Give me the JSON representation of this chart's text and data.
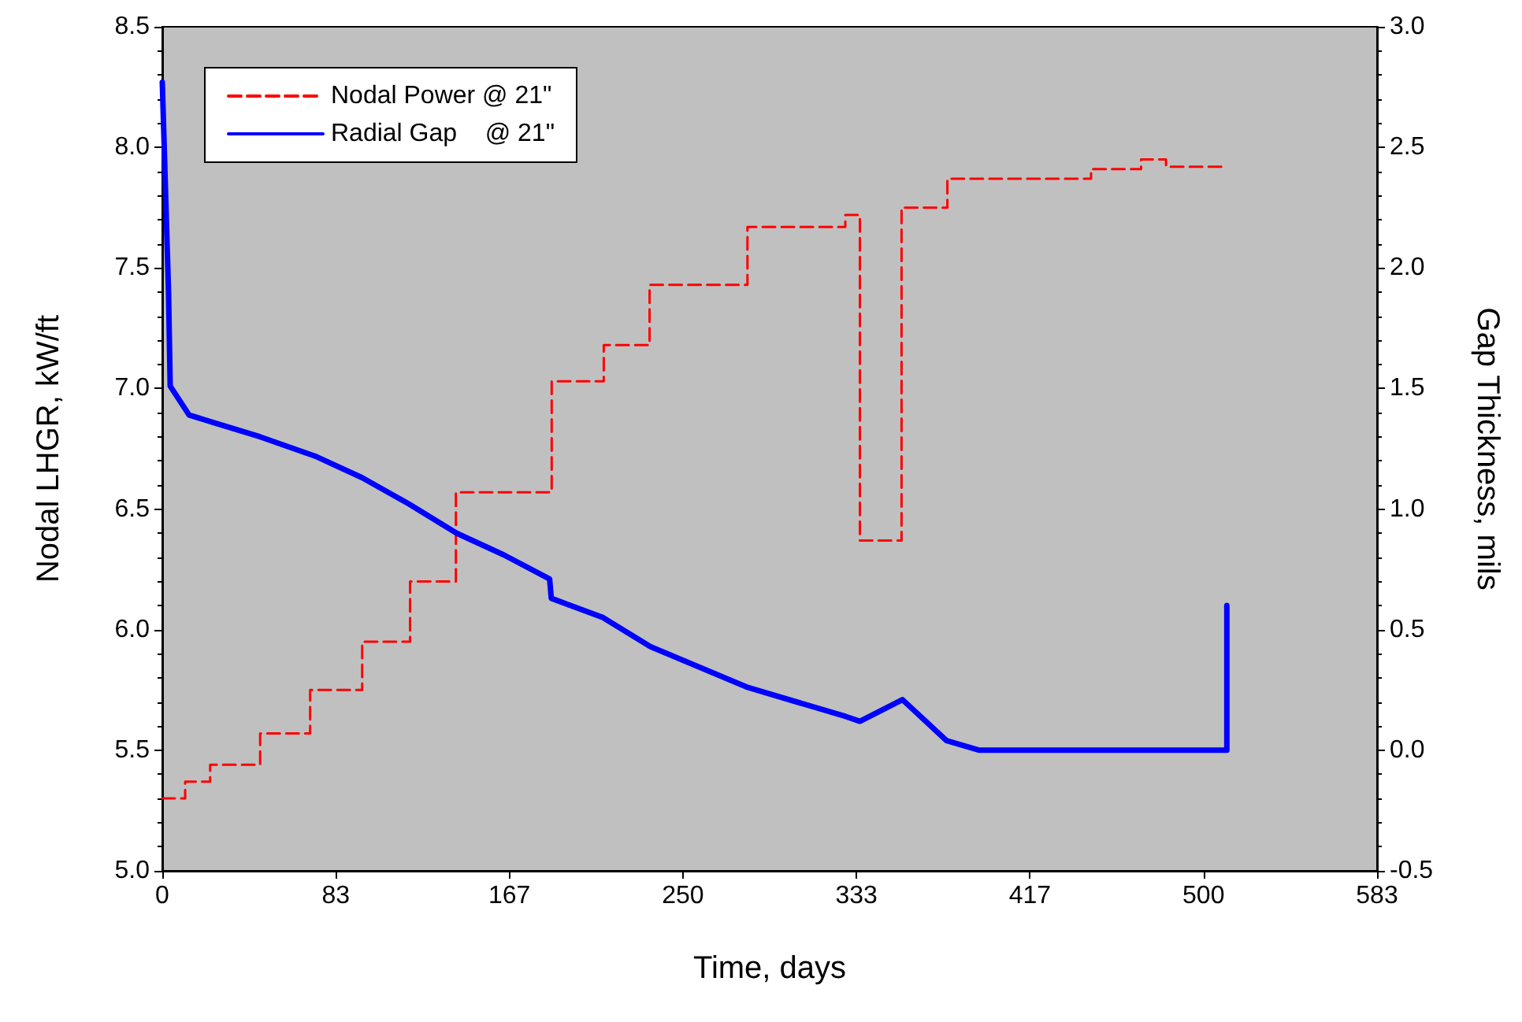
{
  "chart_data": {
    "type": "step",
    "xlabel": "Time, days",
    "ylabel": "Nodal LHGR, kW/ft",
    "y2label": "Gap Thickness, mils",
    "xlim": [
      0,
      583.33
    ],
    "xticks": [
      {
        "value": 0,
        "label": "0"
      },
      {
        "value": 83.33,
        "label": "83"
      },
      {
        "value": 166.67,
        "label": "167"
      },
      {
        "value": 250,
        "label": "250"
      },
      {
        "value": 333.33,
        "label": "333"
      },
      {
        "value": 416.67,
        "label": "417"
      },
      {
        "value": 500,
        "label": "500"
      },
      {
        "value": 583.33,
        "label": "583"
      }
    ],
    "ylim": [
      5,
      8.5
    ],
    "yticks": [
      {
        "value": 5,
        "label": "5.0"
      },
      5.5,
      {
        "value": 6,
        "label": "6.0"
      },
      6.5,
      {
        "value": 7,
        "label": "7.0"
      },
      7.5,
      {
        "value": 8,
        "label": "8.0"
      },
      8.5
    ],
    "y2lim": [
      -0.5,
      3
    ],
    "y2ticks": [
      -0.5,
      {
        "value": 0,
        "label": "0.0"
      },
      0.5,
      {
        "value": 1,
        "label": "1.0"
      },
      1.5,
      {
        "value": 2,
        "label": "2.0"
      },
      2.5,
      {
        "value": 3,
        "label": "3.0"
      }
    ],
    "legend": "top left",
    "grid": false,
    "marker": "none",
    "series": [
      {
        "name": "Nodal Power @ 21\"",
        "type": "step",
        "color": "#ff0000",
        "line_style": "dashed",
        "x": [
          0,
          11,
          23,
          47,
          71,
          96,
          119,
          141,
          187,
          212,
          234,
          281,
          328,
          335,
          355,
          377,
          446,
          470,
          482,
          511
        ],
        "values": [
          5.3,
          5.37,
          5.44,
          5.57,
          5.75,
          5.95,
          6.2,
          6.57,
          7.03,
          7.18,
          7.43,
          7.67,
          7.72,
          6.37,
          7.75,
          7.87,
          7.91,
          7.95,
          7.92,
          7.92
        ]
      },
      {
        "name": "Radial Gap    @ 21\"",
        "type": "line",
        "color": "#0000ff",
        "line_style": "solid",
        "axis": "y2",
        "x": [
          0,
          3,
          3.8,
          12.9,
          24.2,
          46.9,
          73.3,
          96,
          118.7,
          141.4,
          164,
          186,
          186.8,
          211.7,
          234.4,
          281.3,
          328.2,
          335,
          355.4,
          376.6,
          392.4,
          511.2,
          511.2
        ],
        "values": [
          2.77,
          1.9,
          1.51,
          1.39,
          1.36,
          1.3,
          1.22,
          1.13,
          1.02,
          0.9,
          0.81,
          0.71,
          0.63,
          0.55,
          0.43,
          0.26,
          0.14,
          0.12,
          0.21,
          0.04,
          0,
          0,
          0.6
        ]
      }
    ]
  }
}
